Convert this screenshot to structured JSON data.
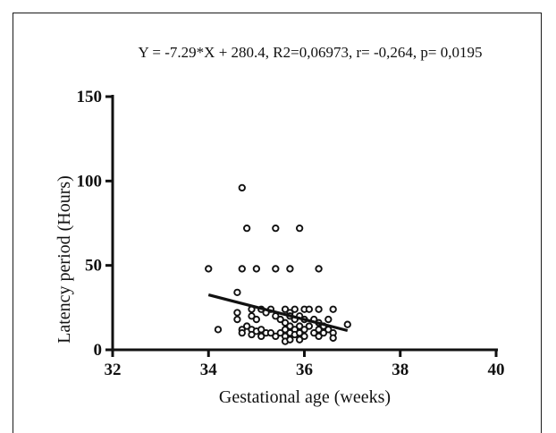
{
  "chart_data": {
    "type": "scatter",
    "title": "Y = -7.29*X + 280.4, R2=0,06973, r= -0,264, p= 0,0195",
    "xlabel": "Gestational age (weeks)",
    "ylabel": "Latency period  (Hours)",
    "xlim": [
      32,
      40
    ],
    "ylim": [
      0,
      150
    ],
    "xticks": [
      "32",
      "34",
      "36",
      "38",
      "40"
    ],
    "yticks": [
      "0",
      "50",
      "100",
      "150"
    ],
    "grid": false,
    "regression": {
      "slope": -7.29,
      "intercept": 280.4,
      "x_range": [
        34,
        36.9
      ]
    },
    "points": [
      [
        34.0,
        48
      ],
      [
        34.2,
        12
      ],
      [
        34.6,
        34
      ],
      [
        34.6,
        22
      ],
      [
        34.6,
        18
      ],
      [
        34.7,
        96
      ],
      [
        34.7,
        48
      ],
      [
        34.7,
        12
      ],
      [
        34.7,
        10
      ],
      [
        34.8,
        72
      ],
      [
        34.8,
        14
      ],
      [
        34.9,
        24
      ],
      [
        34.9,
        20
      ],
      [
        34.9,
        12
      ],
      [
        34.9,
        9
      ],
      [
        35.0,
        48
      ],
      [
        35.0,
        18
      ],
      [
        35.0,
        11
      ],
      [
        35.1,
        24
      ],
      [
        35.1,
        12
      ],
      [
        35.1,
        8
      ],
      [
        35.2,
        22
      ],
      [
        35.2,
        10
      ],
      [
        35.3,
        24
      ],
      [
        35.3,
        10
      ],
      [
        35.4,
        72
      ],
      [
        35.4,
        48
      ],
      [
        35.4,
        20
      ],
      [
        35.4,
        8
      ],
      [
        35.5,
        18
      ],
      [
        35.5,
        10
      ],
      [
        35.6,
        24
      ],
      [
        35.6,
        16
      ],
      [
        35.6,
        12
      ],
      [
        35.6,
        8
      ],
      [
        35.6,
        5
      ],
      [
        35.7,
        48
      ],
      [
        35.7,
        22
      ],
      [
        35.7,
        20
      ],
      [
        35.7,
        14
      ],
      [
        35.7,
        10
      ],
      [
        35.7,
        6
      ],
      [
        35.8,
        24
      ],
      [
        35.8,
        18
      ],
      [
        35.8,
        12
      ],
      [
        35.8,
        9
      ],
      [
        35.9,
        72
      ],
      [
        35.9,
        20
      ],
      [
        35.9,
        14
      ],
      [
        35.9,
        10
      ],
      [
        35.9,
        6
      ],
      [
        36.0,
        24
      ],
      [
        36.0,
        18
      ],
      [
        36.0,
        12
      ],
      [
        36.0,
        8
      ],
      [
        36.1,
        24
      ],
      [
        36.1,
        14
      ],
      [
        36.2,
        18
      ],
      [
        36.2,
        10
      ],
      [
        36.3,
        48
      ],
      [
        36.3,
        24
      ],
      [
        36.3,
        16
      ],
      [
        36.3,
        12
      ],
      [
        36.3,
        8
      ],
      [
        36.4,
        14
      ],
      [
        36.4,
        10
      ],
      [
        36.5,
        18
      ],
      [
        36.5,
        12
      ],
      [
        36.6,
        24
      ],
      [
        36.6,
        10
      ],
      [
        36.6,
        7
      ],
      [
        36.9,
        15
      ]
    ]
  }
}
